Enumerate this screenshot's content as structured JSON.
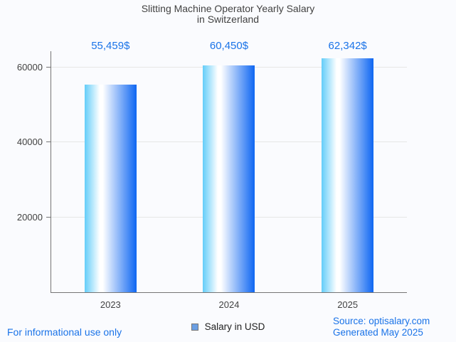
{
  "title": {
    "line1": "Slitting Machine Operator Yearly Salary",
    "line2": "in Switzerland"
  },
  "chart_data": {
    "type": "bar",
    "title": "Slitting Machine Operator Yearly Salary in Switzerland",
    "categories": [
      "2023",
      "2024",
      "2025"
    ],
    "series": [
      {
        "name": "Salary in USD",
        "values": [
          55459,
          60450,
          62342
        ]
      }
    ],
    "value_labels": [
      "55,459$",
      "60,450$",
      "62,342$"
    ],
    "xlabel": "",
    "ylabel": "",
    "ylim": [
      0,
      64300
    ],
    "yticks": [
      20000,
      40000,
      60000
    ],
    "ytick_labels": [
      "20000",
      "40000",
      "60000"
    ],
    "grid": true,
    "legend_position": "bottom",
    "bar_gradient": [
      "#63cdf9",
      "#ffffff",
      "#0e66f2"
    ]
  },
  "legend": {
    "label": "Salary in USD"
  },
  "footer": {
    "disclaimer": "For informational use only",
    "source": "Source: optisalary.com",
    "generated": "Generated May 2025"
  },
  "colors": {
    "page_bg": "#fafbfe",
    "accent_blue": "#1a73e8",
    "title_text": "#424242",
    "axis_text": "#424242",
    "legend_text": "#222222",
    "axis_line": "#757575",
    "gridline": "#e6e6e6",
    "bar_gradient_left": "#63cdf9",
    "bar_gradient_mid": "#ffffff",
    "bar_gradient_right": "#0e66f2",
    "legend_swatch_fill": "#6b9fe3",
    "legend_swatch_border": "#757575"
  }
}
